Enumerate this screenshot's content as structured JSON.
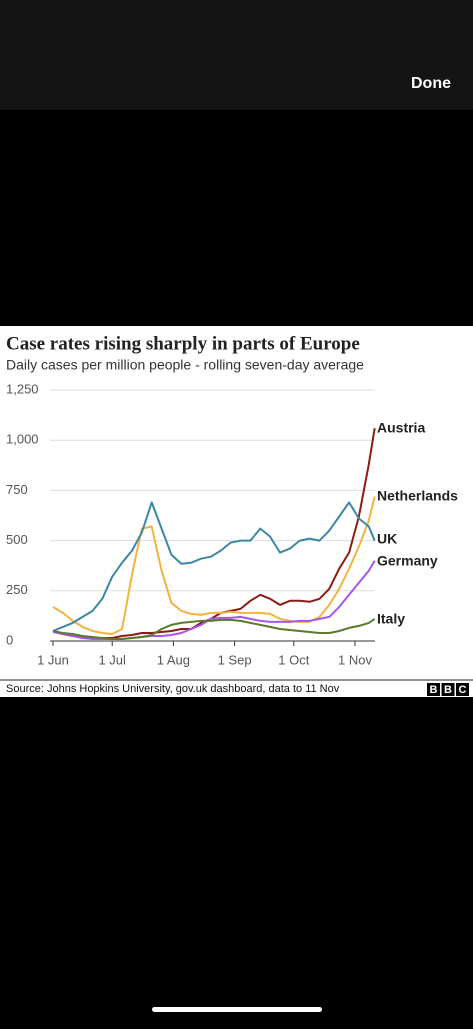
{
  "ui": {
    "done": "Done"
  },
  "chart_data": {
    "type": "line",
    "title": "Case rates rising sharply in parts of Europe",
    "subtitle": "Daily cases per million people - rolling seven-day average",
    "source": "Source: Johns Hopkins University, gov.uk dashboard, data to 11 Nov",
    "logo": [
      "B",
      "B",
      "C"
    ],
    "x": [
      "1 Jun",
      "6 Jun",
      "11 Jun",
      "16 Jun",
      "21 Jun",
      "26 Jun",
      "1 Jul",
      "6 Jul",
      "11 Jul",
      "16 Jul",
      "21 Jul",
      "26 Jul",
      "31 Jul",
      "5 Aug",
      "10 Aug",
      "15 Aug",
      "20 Aug",
      "25 Aug",
      "30 Aug",
      "4 Sep",
      "9 Sep",
      "14 Sep",
      "19 Sep",
      "24 Sep",
      "29 Sep",
      "4 Oct",
      "9 Oct",
      "14 Oct",
      "19 Oct",
      "24 Oct",
      "29 Oct",
      "3 Nov",
      "8 Nov",
      "11 Nov"
    ],
    "xticks": [
      "1 Jun",
      "1 Jul",
      "1 Aug",
      "1 Sep",
      "1 Oct",
      "1 Nov"
    ],
    "ylim": [
      0,
      1250
    ],
    "yticks": [
      0,
      250,
      500,
      750,
      {
        "value": 1000,
        "label": "1,000"
      },
      {
        "value": 1250,
        "label": "1,250"
      }
    ],
    "grid": true,
    "series": [
      {
        "name": "Austria",
        "color": "#8c1c13",
        "values": [
          50,
          35,
          25,
          20,
          15,
          15,
          15,
          25,
          30,
          40,
          40,
          45,
          50,
          60,
          60,
          90,
          110,
          140,
          150,
          160,
          200,
          230,
          210,
          180,
          200,
          200,
          195,
          210,
          260,
          360,
          440,
          620,
          880,
          1060
        ]
      },
      {
        "name": "Netherlands",
        "color": "#f2b342",
        "values": [
          170,
          140,
          100,
          70,
          50,
          40,
          35,
          60,
          330,
          560,
          570,
          350,
          190,
          150,
          135,
          130,
          140,
          140,
          145,
          140,
          140,
          140,
          135,
          110,
          100,
          95,
          95,
          120,
          180,
          260,
          360,
          470,
          600,
          720
        ]
      },
      {
        "name": "UK",
        "color": "#3d87a6",
        "values": [
          50,
          70,
          90,
          120,
          150,
          210,
          320,
          390,
          450,
          540,
          690,
          560,
          430,
          385,
          390,
          410,
          420,
          450,
          490,
          500,
          500,
          560,
          520,
          440,
          460,
          500,
          510,
          500,
          550,
          620,
          690,
          610,
          570,
          500
        ]
      },
      {
        "name": "Germany",
        "color": "#a855f0",
        "values": [
          45,
          35,
          25,
          15,
          10,
          10,
          10,
          10,
          15,
          20,
          25,
          25,
          30,
          40,
          60,
          80,
          110,
          115,
          115,
          120,
          110,
          100,
          95,
          95,
          95,
          100,
          100,
          110,
          120,
          170,
          230,
          290,
          350,
          400
        ]
      },
      {
        "name": "Italy",
        "color": "#5b7a2a",
        "values": [
          50,
          40,
          35,
          25,
          20,
          15,
          10,
          10,
          15,
          20,
          30,
          60,
          80,
          90,
          95,
          100,
          100,
          105,
          105,
          100,
          90,
          80,
          70,
          60,
          55,
          50,
          45,
          40,
          40,
          50,
          65,
          75,
          90,
          110
        ]
      }
    ]
  }
}
